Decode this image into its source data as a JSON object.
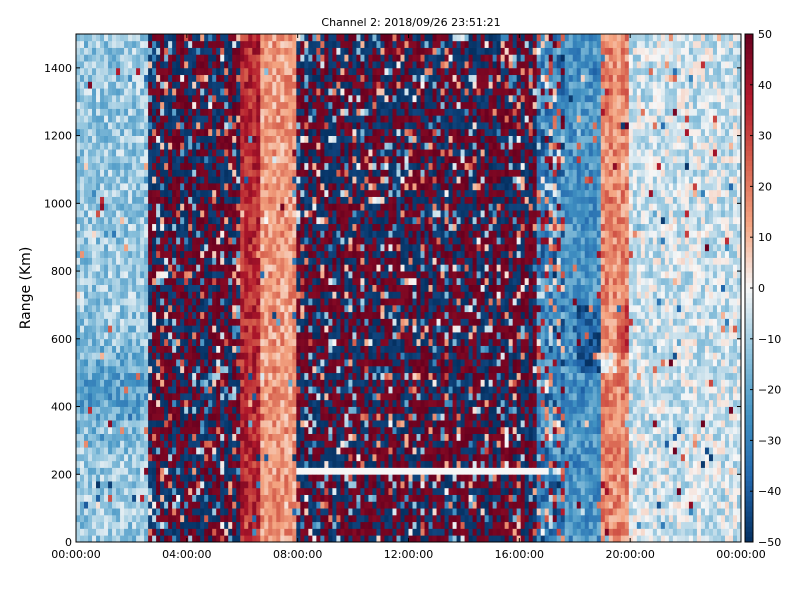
{
  "chart_data": {
    "type": "heatmap",
    "title": "Channel 2: 2018/09/26 23:51:21",
    "xlabel": "",
    "ylabel": "Range (Km)",
    "xlim": [
      "00:00:00",
      "24:00:00"
    ],
    "ylim": [
      0,
      1500
    ],
    "x_ticks": [
      "00:00:00",
      "04:00:00",
      "08:00:00",
      "12:00:00",
      "16:00:00",
      "20:00:00",
      "00:00:00"
    ],
    "y_ticks": [
      0,
      200,
      400,
      600,
      800,
      1000,
      1200,
      1400
    ],
    "colorbar": {
      "range": [
        -50,
        50
      ],
      "ticks": [
        50,
        40,
        30,
        20,
        10,
        0,
        -10,
        -20,
        -30,
        -40,
        -50
      ],
      "colormap": "RdBu_r",
      "low_color": "#053061",
      "mid_color": "#f7f7f7",
      "high_color": "#67001f"
    },
    "grid": false,
    "bands": [
      {
        "time_start": "00:00:00",
        "time_end": "02:40:00",
        "pattern": "smooth",
        "mean_value": -12
      },
      {
        "time_start": "02:40:00",
        "time_end": "06:00:00",
        "pattern": "noise",
        "mean_value": 0
      },
      {
        "time_start": "06:00:00",
        "time_end": "06:40:00",
        "pattern": "smooth",
        "mean_value": 35
      },
      {
        "time_start": "06:40:00",
        "time_end": "08:00:00",
        "pattern": "smooth",
        "mean_value": 15
      },
      {
        "time_start": "08:00:00",
        "time_end": "16:40:00",
        "pattern": "noise",
        "mean_value": 0
      },
      {
        "time_start": "16:40:00",
        "time_end": "17:40:00",
        "pattern": "mixed",
        "mean_value": -10
      },
      {
        "time_start": "17:40:00",
        "time_end": "19:00:00",
        "pattern": "smooth",
        "mean_value": -25
      },
      {
        "time_start": "19:00:00",
        "time_end": "20:00:00",
        "pattern": "smooth",
        "mean_value": 18
      },
      {
        "time_start": "20:00:00",
        "time_end": "24:00:00",
        "pattern": "smooth",
        "mean_value": -5
      }
    ],
    "features": [
      {
        "type": "horizontal-line",
        "range_km": 215,
        "time_start": "08:00:00",
        "time_end": "17:00:00",
        "value": 0
      }
    ]
  }
}
